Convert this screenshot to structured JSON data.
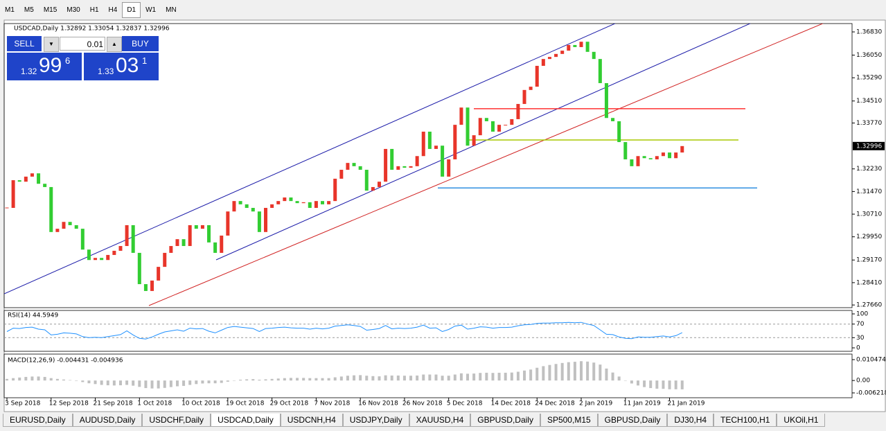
{
  "toolbar": {
    "buttons": [
      "M1",
      "M5",
      "M15",
      "M30",
      "H1",
      "H4",
      "D1",
      "W1",
      "MN"
    ],
    "active": 6
  },
  "trade_panel": {
    "sell": "SELL",
    "lot": "0.01",
    "buy": "BUY",
    "bid_big": "1.32",
    "bid_pips": "99",
    "bid_frac": "6",
    "ask_big": "1.33",
    "ask_pips": "03",
    "ask_frac": "1"
  },
  "tabs": {
    "items": [
      "EURUSD,Daily",
      "AUDUSD,Daily",
      "USDCHF,Daily",
      "USDCAD,Daily",
      "USDCNH,H4",
      "USDJPY,Daily",
      "XAUUSD,H4",
      "GBPUSD,Daily",
      "SP500,M15",
      "GBPUSD,Daily",
      "DJ30,H4",
      "TECH100,H1",
      "UKOil,H1"
    ],
    "active": 3
  },
  "chart_data": [
    {
      "type": "candlestick",
      "title": "USDCAD,Daily 1.32892 1.33054 1.32837 1.32996",
      "up_color": "#e8352a",
      "down_color": "#32cd32",
      "categories": [
        "3 Sep 2018",
        null,
        null,
        null,
        null,
        null,
        null,
        "12 Sep 2018",
        null,
        null,
        null,
        null,
        null,
        null,
        "21 Sep 2018",
        null,
        null,
        null,
        null,
        null,
        null,
        "1 Oct 2018",
        null,
        null,
        null,
        null,
        null,
        null,
        "10 Oct 2018",
        null,
        null,
        null,
        null,
        null,
        null,
        "19 Oct 2018",
        null,
        null,
        null,
        null,
        null,
        null,
        "29 Oct 2018",
        null,
        null,
        null,
        null,
        null,
        null,
        "7 Nov 2018",
        null,
        null,
        null,
        null,
        null,
        null,
        "16 Nov 2018",
        null,
        null,
        null,
        null,
        null,
        null,
        "26 Nov 2018",
        null,
        null,
        null,
        null,
        null,
        null,
        "5 Dec 2018",
        null,
        null,
        null,
        null,
        null,
        null,
        "14 Dec 2018",
        null,
        null,
        null,
        null,
        null,
        null,
        "24 Dec 2018",
        null,
        null,
        null,
        null,
        null,
        null,
        "2 Jan 2019",
        null,
        null,
        null,
        null,
        null,
        null,
        "11 Jan 2019",
        null,
        null,
        null,
        null,
        null,
        null,
        "21 Jan 2019",
        null,
        null
      ],
      "values": [
        1.3092,
        1.3185,
        1.318,
        1.3197,
        1.3208,
        1.3173,
        1.3162,
        1.3011,
        1.3022,
        1.3045,
        1.3034,
        1.3022,
        1.2952,
        1.2917,
        1.2924,
        1.2917,
        1.2934,
        1.2948,
        1.2964,
        1.3034,
        1.2941,
        1.2836,
        1.2813,
        1.2848,
        1.2894,
        1.2941,
        1.2964,
        1.2987,
        1.2964,
        1.3034,
        1.3022,
        1.3034,
        1.2976,
        1.2941,
        1.2999,
        1.308,
        1.3115,
        1.3104,
        1.3092,
        1.308,
        1.3011,
        1.3092,
        1.3104,
        1.3115,
        1.3127,
        1.3115,
        1.3108,
        1.3111,
        1.3092,
        1.3115,
        1.3104,
        1.3115,
        1.319,
        1.322,
        1.3243,
        1.3232,
        1.322,
        1.315,
        1.3162,
        1.318,
        1.329,
        1.322,
        1.3232,
        1.3227,
        1.3232,
        1.3266,
        1.3348,
        1.329,
        1.3301,
        1.3197,
        1.3255,
        1.3371,
        1.3429,
        1.3301,
        1.3336,
        1.3394,
        1.3383,
        1.3348,
        1.3371,
        1.3371,
        1.339,
        1.3441,
        1.3488,
        1.3499,
        1.3569,
        1.3592,
        1.3599,
        1.3609,
        1.362,
        1.3639,
        1.3632,
        1.365,
        1.3616,
        1.3592,
        1.3511,
        1.3394,
        1.3383,
        1.3313,
        1.3255,
        1.3232,
        1.3266,
        1.3259,
        1.3255,
        1.3266,
        1.3278,
        1.3259,
        1.3278,
        1.32996
      ],
      "levels": [
        {
          "value": 1.3425,
          "color": "#ff3030"
        },
        {
          "value": 1.332,
          "color": "#a8c800"
        },
        {
          "value": 1.3159,
          "color": "#2f8fe0"
        }
      ],
      "ylim": [
        1.2757,
        1.3711
      ],
      "yticks": [
        {
          "value": 1.3683,
          "label": "1.36830"
        },
        {
          "value": 1.3605,
          "label": "1.36050"
        },
        {
          "value": 1.3529,
          "label": "1.35290"
        },
        {
          "value": 1.3451,
          "label": "1.34510"
        },
        {
          "value": 1.3377,
          "label": "1.33770"
        },
        {
          "value": 1.3223,
          "label": "1.32230"
        },
        {
          "value": 1.3147,
          "label": "1.31470"
        },
        {
          "value": 1.3071,
          "label": "1.30710"
        },
        {
          "value": 1.2995,
          "label": "1.29950"
        },
        {
          "value": 1.2917,
          "label": "1.29170"
        },
        {
          "value": 1.2841,
          "label": "1.28410"
        },
        {
          "value": 1.2766,
          "label": "1.27660"
        }
      ]
    },
    {
      "type": "line",
      "title": "RSI(14) 44.5949",
      "color": "#1e90ff",
      "values": [
        48,
        58,
        57,
        60,
        61,
        55,
        53,
        38,
        40,
        44,
        43,
        41,
        33,
        30,
        31,
        30,
        33,
        36,
        39,
        50,
        38,
        28,
        26,
        32,
        40,
        47,
        50,
        53,
        49,
        58,
        56,
        57,
        49,
        44,
        52,
        60,
        63,
        61,
        59,
        57,
        48,
        57,
        58,
        60,
        61,
        59,
        58,
        58,
        55,
        58,
        56,
        58,
        64,
        66,
        68,
        66,
        63,
        52,
        54,
        57,
        66,
        56,
        58,
        57,
        58,
        61,
        67,
        58,
        59,
        48,
        54,
        64,
        67,
        55,
        58,
        62,
        61,
        58,
        60,
        60,
        61,
        65,
        68,
        69,
        72,
        73,
        73,
        74,
        74,
        75,
        74,
        75,
        70,
        66,
        53,
        40,
        39,
        32,
        28,
        27,
        32,
        31,
        31,
        33,
        35,
        32,
        36,
        44.5949
      ],
      "ylim": [
        -10.2,
        110.2
      ],
      "yticks": [
        0,
        30,
        70,
        100
      ]
    },
    {
      "type": "bar",
      "title": "MACD(12,26,9) -0.004431 -0.004936",
      "color": "#c0c0c0",
      "values": [
        0.0008,
        0.0012,
        0.0015,
        0.0018,
        0.002,
        0.002,
        0.0018,
        0.0012,
        0.0008,
        0.0005,
        0.0002,
        -0.0002,
        -0.0008,
        -0.0014,
        -0.0018,
        -0.0022,
        -0.0024,
        -0.0025,
        -0.0024,
        -0.0022,
        -0.0026,
        -0.0032,
        -0.0038,
        -0.004,
        -0.004,
        -0.0037,
        -0.0033,
        -0.0029,
        -0.0027,
        -0.0022,
        -0.0018,
        -0.0015,
        -0.0014,
        -0.0014,
        -0.0012,
        -0.0006,
        0,
        0.0004,
        0.0006,
        0.0007,
        0.0004,
        0.0006,
        0.0008,
        0.001,
        0.0012,
        0.0013,
        0.0013,
        0.0013,
        0.0012,
        0.0012,
        0.0012,
        0.0012,
        0.0016,
        0.002,
        0.0024,
        0.0026,
        0.0027,
        0.0024,
        0.0022,
        0.0021,
        0.0026,
        0.0025,
        0.0025,
        0.0024,
        0.0024,
        0.0025,
        0.003,
        0.003,
        0.003,
        0.0024,
        0.0024,
        0.003,
        0.0036,
        0.0034,
        0.0035,
        0.0038,
        0.0039,
        0.0038,
        0.0039,
        0.0039,
        0.004,
        0.0044,
        0.005,
        0.0055,
        0.0064,
        0.0072,
        0.0078,
        0.0083,
        0.0088,
        0.0092,
        0.0094,
        0.0097,
        0.0095,
        0.009,
        0.008,
        0.006,
        0.004,
        0.002,
        0,
        -0.0015,
        -0.0025,
        -0.0033,
        -0.0038,
        -0.0041,
        -0.0042,
        -0.0044,
        -0.0044,
        -0.004431
      ],
      "ylim": [
        -0.00865,
        0.01326
      ],
      "yticks": [
        -0.006218,
        {
          "value": 0,
          "label": "0.00"
        },
        0.010474
      ]
    }
  ]
}
